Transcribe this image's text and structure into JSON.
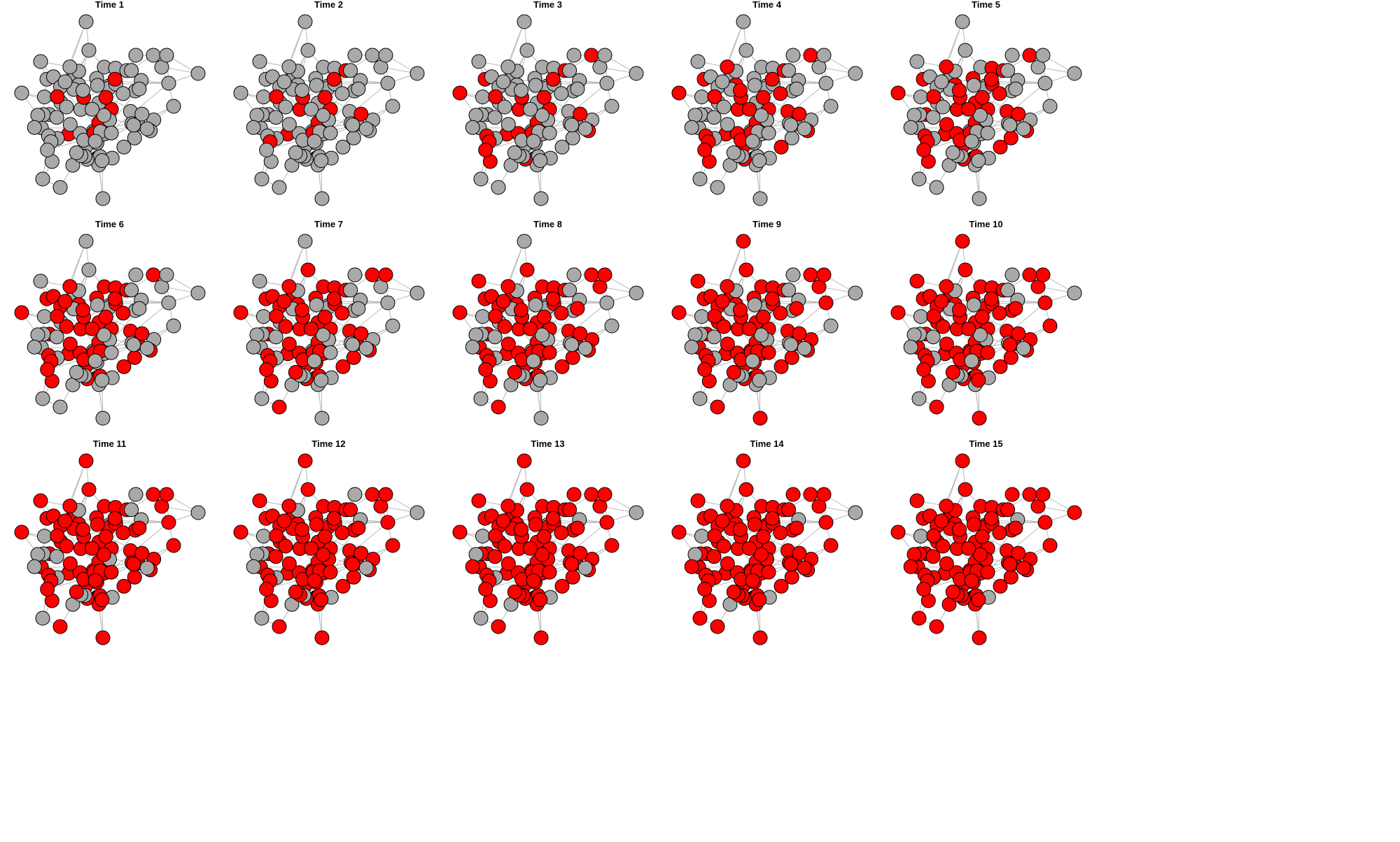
{
  "figure": {
    "panels": [
      {
        "title": "Time 1",
        "infected_count": 9
      },
      {
        "title": "Time 2",
        "infected_count": 13
      },
      {
        "title": "Time 3",
        "infected_count": 22
      },
      {
        "title": "Time 4",
        "infected_count": 31
      },
      {
        "title": "Time 5",
        "infected_count": 39
      },
      {
        "title": "Time 6",
        "infected_count": 47
      },
      {
        "title": "Time 7",
        "infected_count": 55
      },
      {
        "title": "Time 8",
        "infected_count": 62
      },
      {
        "title": "Time 9",
        "infected_count": 68
      },
      {
        "title": "Time 10",
        "infected_count": 74
      },
      {
        "title": "Time 11",
        "infected_count": 80
      },
      {
        "title": "Time 12",
        "infected_count": 85
      },
      {
        "title": "Time 13",
        "infected_count": 90
      },
      {
        "title": "Time 14",
        "infected_count": 94
      },
      {
        "title": "Time 15",
        "infected_count": 97
      }
    ],
    "node_count": 100,
    "colors": {
      "infected": "#ff0000",
      "susceptible": "#a9a9a9",
      "edge": "#b8b8b8",
      "node_outline": "#000000"
    }
  }
}
